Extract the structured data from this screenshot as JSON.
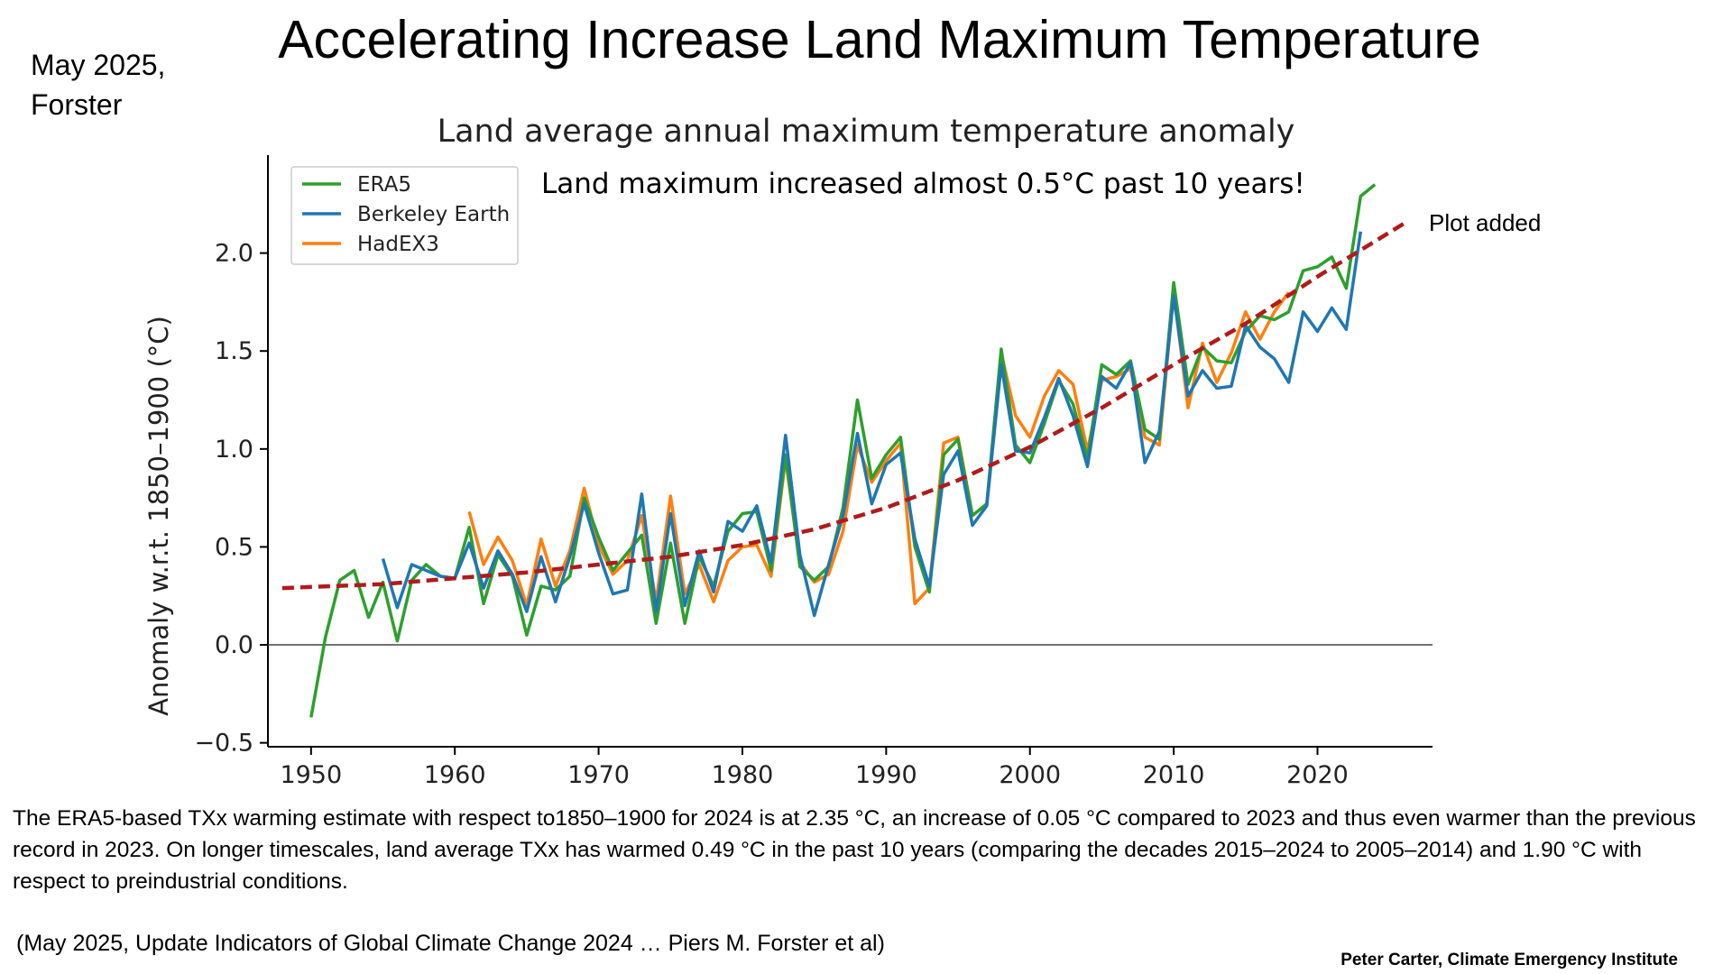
{
  "slide": {
    "title": "Accelerating Increase Land Maximum Temperature",
    "date_line1": "May 2025,",
    "date_line2": "Forster",
    "plot_note": "Plot added",
    "body_text": "The ERA5-based TXx warming estimate with respect to1850–1900 for 2024 is at 2.35 °C, an increase of 0.05 °C compared to 2023 and thus even warmer than the previous record in 2023. On longer timescales, land average TXx has warmed 0.49 °C in the past 10 years (comparing the decades 2015–2024 to 2005–2014) and 1.90 °C with respect to preindustrial conditions.",
    "citation": "(May 2025, Update Indicators of Global Climate Change 2024 … Piers M. Forster et al)",
    "credit": "Peter Carter, Climate Emergency Institute"
  },
  "chart_data": {
    "type": "line",
    "title": "Land average annual maximum temperature anomaly",
    "annotation": "Land maximum increased almost 0.5°C past 10 years!",
    "xlabel": "",
    "ylabel": "Anomaly w.r.t. 1850–1900 (°C)",
    "xlim": [
      1947,
      2028
    ],
    "ylim": [
      -0.52,
      2.5
    ],
    "xticks": [
      1950,
      1960,
      1970,
      1980,
      1990,
      2000,
      2010,
      2020
    ],
    "yticks": [
      -0.5,
      0.0,
      0.5,
      1.0,
      1.5,
      2.0
    ],
    "ytick_labels": [
      "−0.5",
      "0.0",
      "0.5",
      "1.0",
      "1.5",
      "2.0"
    ],
    "zero_line": true,
    "legend_position": "top-left",
    "series": [
      {
        "name": "ERA5",
        "color": "#2ca02c",
        "x": [
          1950,
          1951,
          1952,
          1953,
          1954,
          1955,
          1956,
          1957,
          1958,
          1959,
          1960,
          1961,
          1962,
          1963,
          1964,
          1965,
          1966,
          1967,
          1968,
          1969,
          1970,
          1971,
          1972,
          1973,
          1974,
          1975,
          1976,
          1977,
          1978,
          1979,
          1980,
          1981,
          1982,
          1983,
          1984,
          1985,
          1986,
          1987,
          1988,
          1989,
          1990,
          1991,
          1992,
          1993,
          1994,
          1995,
          1996,
          1997,
          1998,
          1999,
          2000,
          2001,
          2002,
          2003,
          2004,
          2005,
          2006,
          2007,
          2008,
          2009,
          2010,
          2011,
          2012,
          2013,
          2014,
          2015,
          2016,
          2017,
          2018,
          2019,
          2020,
          2021,
          2022,
          2023,
          2024
        ],
        "values": [
          -0.37,
          0.04,
          0.33,
          0.38,
          0.14,
          0.32,
          0.02,
          0.33,
          0.41,
          0.35,
          0.34,
          0.6,
          0.21,
          0.46,
          0.35,
          0.05,
          0.3,
          0.28,
          0.35,
          0.75,
          0.55,
          0.38,
          0.47,
          0.56,
          0.11,
          0.52,
          0.11,
          0.45,
          0.3,
          0.58,
          0.67,
          0.68,
          0.38,
          0.97,
          0.4,
          0.33,
          0.4,
          0.7,
          1.25,
          0.85,
          0.97,
          1.06,
          0.5,
          0.27,
          0.97,
          1.05,
          0.66,
          0.72,
          1.51,
          1.02,
          0.93,
          1.13,
          1.35,
          1.23,
          0.95,
          1.43,
          1.38,
          1.45,
          1.1,
          1.05,
          1.85,
          1.33,
          1.52,
          1.45,
          1.44,
          1.6,
          1.68,
          1.66,
          1.7,
          1.91,
          1.93,
          1.98,
          1.82,
          2.29,
          2.35
        ]
      },
      {
        "name": "Berkeley Earth",
        "color": "#1f77b4",
        "x": [
          1955,
          1956,
          1957,
          1958,
          1959,
          1960,
          1961,
          1962,
          1963,
          1964,
          1965,
          1966,
          1967,
          1968,
          1969,
          1970,
          1971,
          1972,
          1973,
          1974,
          1975,
          1976,
          1977,
          1978,
          1979,
          1980,
          1981,
          1982,
          1983,
          1984,
          1985,
          1986,
          1987,
          1988,
          1989,
          1990,
          1991,
          1992,
          1993,
          1994,
          1995,
          1996,
          1997,
          1998,
          1999,
          2000,
          2001,
          2002,
          2003,
          2004,
          2005,
          2006,
          2007,
          2008,
          2009,
          2010,
          2011,
          2012,
          2013,
          2014,
          2015,
          2016,
          2017,
          2018,
          2019,
          2020,
          2021,
          2022,
          2023
        ],
        "values": [
          0.44,
          0.19,
          0.41,
          0.38,
          0.35,
          0.34,
          0.52,
          0.29,
          0.48,
          0.36,
          0.17,
          0.45,
          0.22,
          0.45,
          0.72,
          0.47,
          0.26,
          0.28,
          0.77,
          0.17,
          0.67,
          0.2,
          0.48,
          0.27,
          0.63,
          0.58,
          0.71,
          0.42,
          1.07,
          0.46,
          0.15,
          0.41,
          0.66,
          1.08,
          0.72,
          0.92,
          0.98,
          0.54,
          0.3,
          0.87,
          0.99,
          0.61,
          0.71,
          1.43,
          0.99,
          0.98,
          1.16,
          1.36,
          1.17,
          0.91,
          1.37,
          1.31,
          1.44,
          0.93,
          1.09,
          1.78,
          1.27,
          1.4,
          1.31,
          1.32,
          1.63,
          1.52,
          1.46,
          1.34,
          1.7,
          1.6,
          1.72,
          1.61,
          2.11
        ]
      },
      {
        "name": "HadEX3",
        "color": "#ff7f0e",
        "x": [
          1961,
          1962,
          1963,
          1964,
          1965,
          1966,
          1967,
          1968,
          1969,
          1970,
          1971,
          1972,
          1973,
          1974,
          1975,
          1976,
          1977,
          1978,
          1979,
          1980,
          1981,
          1982,
          1983,
          1984,
          1985,
          1986,
          1987,
          1988,
          1989,
          1990,
          1991,
          1992,
          1993,
          1994,
          1995,
          1996,
          1997,
          1998,
          1999,
          2000,
          2001,
          2002,
          2003,
          2004,
          2005,
          2006,
          2007,
          2008,
          2009,
          2010,
          2011,
          2012,
          2013,
          2014,
          2015,
          2016,
          2017,
          2018
        ],
        "values": [
          0.68,
          0.41,
          0.55,
          0.43,
          0.2,
          0.54,
          0.3,
          0.48,
          0.8,
          0.51,
          0.36,
          0.43,
          0.66,
          0.22,
          0.76,
          0.26,
          0.41,
          0.22,
          0.43,
          0.5,
          0.51,
          0.35,
          0.95,
          0.42,
          0.32,
          0.36,
          0.58,
          1.02,
          0.83,
          0.94,
          1.03,
          0.21,
          0.29,
          1.03,
          1.06,
          0.66,
          0.72,
          1.49,
          1.17,
          1.06,
          1.27,
          1.4,
          1.33,
          0.99,
          1.35,
          1.37,
          1.41,
          1.06,
          1.02,
          1.8,
          1.21,
          1.54,
          1.34,
          1.49,
          1.7,
          1.56,
          1.7,
          1.8
        ]
      },
      {
        "name": "",
        "color": "#b01b1b",
        "dashed": true,
        "x": [
          1948,
          1955,
          1960,
          1965,
          1970,
          1975,
          1980,
          1985,
          1990,
          1995,
          2000,
          2005,
          2010,
          2015,
          2020,
          2026
        ],
        "values": [
          0.29,
          0.31,
          0.34,
          0.37,
          0.41,
          0.45,
          0.51,
          0.59,
          0.7,
          0.84,
          1.01,
          1.21,
          1.43,
          1.64,
          1.88,
          2.15
        ]
      }
    ]
  }
}
